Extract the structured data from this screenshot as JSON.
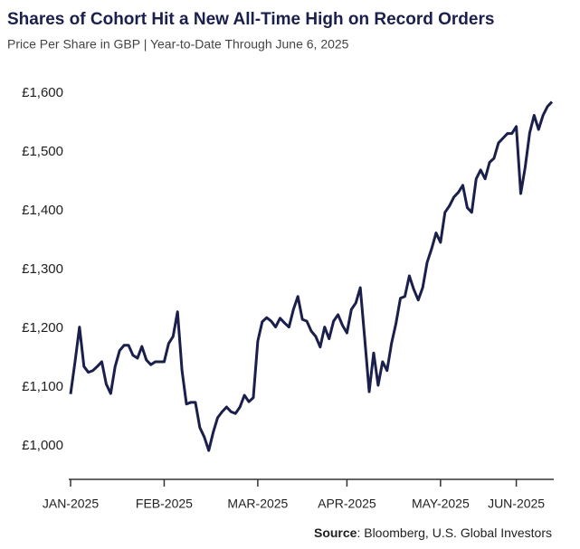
{
  "chart_data": {
    "type": "line",
    "title": "Shares of Cohort Hit a New All-Time High on Record Orders",
    "subtitle": "Price Per Share in GBP | Year-to-Date Through June 6, 2025",
    "source": {
      "label": "Source",
      "text": ": Bloomberg, U.S. Global Investors"
    },
    "categories": [
      "JAN-2025",
      null,
      null,
      null,
      null,
      null,
      null,
      null,
      null,
      null,
      null,
      null,
      null,
      null,
      null,
      null,
      null,
      null,
      null,
      null,
      null,
      "FEB-2025",
      null,
      null,
      null,
      null,
      null,
      null,
      null,
      null,
      null,
      null,
      null,
      null,
      null,
      null,
      null,
      null,
      null,
      null,
      null,
      null,
      "MAR-2025",
      null,
      null,
      null,
      null,
      null,
      null,
      null,
      null,
      null,
      null,
      null,
      null,
      null,
      null,
      null,
      null,
      null,
      null,
      null,
      "APR-2025",
      null,
      null,
      null,
      null,
      null,
      null,
      null,
      null,
      null,
      null,
      null,
      null,
      null,
      null,
      null,
      null,
      null,
      null,
      null,
      null,
      "MAY-2025",
      null,
      null,
      null,
      null,
      null,
      null,
      null,
      null,
      null,
      null,
      null,
      null,
      null,
      null,
      null,
      null,
      "JUN-2025",
      null,
      null,
      null,
      null,
      null,
      null,
      null,
      null
    ],
    "series": [
      {
        "name": "Cohort",
        "color": "#1b1f4b",
        "values": [
          1088,
          1143,
          1202,
          1135,
          1125,
          1128,
          1135,
          1143,
          1105,
          1089,
          1135,
          1162,
          1171,
          1171,
          1154,
          1149,
          1169,
          1146,
          1138,
          1143,
          1143,
          1143,
          1174,
          1186,
          1228,
          1128,
          1071,
          1074,
          1074,
          1031,
          1015,
          992,
          1023,
          1048,
          1058,
          1066,
          1058,
          1055,
          1066,
          1086,
          1075,
          1082,
          1178,
          1211,
          1218,
          1212,
          1202,
          1217,
          1209,
          1202,
          1232,
          1254,
          1215,
          1212,
          1195,
          1186,
          1168,
          1202,
          1182,
          1212,
          1223,
          1205,
          1192,
          1232,
          1243,
          1269,
          1182,
          1092,
          1158,
          1103,
          1143,
          1128,
          1174,
          1208,
          1251,
          1254,
          1289,
          1266,
          1248,
          1269,
          1312,
          1335,
          1362,
          1346,
          1397,
          1408,
          1423,
          1431,
          1443,
          1405,
          1397,
          1454,
          1469,
          1454,
          1482,
          1489,
          1515,
          1523,
          1531,
          1531,
          1543,
          1429,
          1474,
          1532,
          1562,
          1538,
          1562,
          1577,
          1585
        ]
      }
    ],
    "ylim": [
      943,
      1612
    ],
    "yticks": [
      {
        "value": 1000,
        "label": "£1,000"
      },
      {
        "value": 1100,
        "label": "£1,100"
      },
      {
        "value": 1200,
        "label": "£1,200"
      },
      {
        "value": 1300,
        "label": "£1,300"
      },
      {
        "value": 1400,
        "label": "£1,400"
      },
      {
        "value": 1500,
        "label": "£1,500"
      },
      {
        "value": 1600,
        "label": "£1,600"
      }
    ],
    "grid": false
  }
}
